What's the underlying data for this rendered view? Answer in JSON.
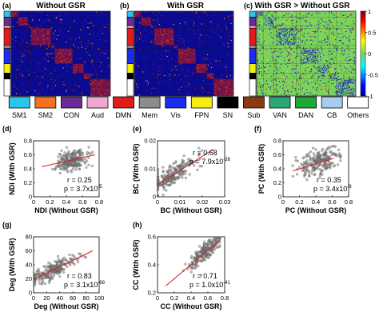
{
  "panels_top": [
    {
      "label": "(a)",
      "title": "Without GSR",
      "variant": "a"
    },
    {
      "label": "(b)",
      "title": "With GSR",
      "variant": "b"
    },
    {
      "label": "(c)",
      "title": "With GSR > Without GSR",
      "variant": "c"
    }
  ],
  "colorbar": {
    "ticks": [
      "1",
      "0.5",
      "0",
      "-0.5",
      "-1"
    ],
    "values": [
      1,
      0.5,
      0,
      -0.5,
      -1
    ]
  },
  "networks": [
    {
      "label": "SM1",
      "color": "#29c5ee"
    },
    {
      "label": "SM2",
      "color": "#f5701f"
    },
    {
      "label": "CON",
      "color": "#6a2c97"
    },
    {
      "label": "Aud",
      "color": "#f4a6d2"
    },
    {
      "label": "DMN",
      "color": "#e31a1c"
    },
    {
      "label": "Mem",
      "color": "#8c8c8c"
    },
    {
      "label": "Vis",
      "color": "#1a2cf0"
    },
    {
      "label": "FPN",
      "color": "#f5ee0f"
    },
    {
      "label": "SN",
      "color": "#000000"
    },
    {
      "label": "Sub",
      "color": "#8b3a0e"
    },
    {
      "label": "VAN",
      "color": "#2aa874"
    },
    {
      "label": "DAN",
      "color": "#1eaa32"
    },
    {
      "label": "CB",
      "color": "#a6cdf0"
    },
    {
      "label": "Others",
      "color": "#ffffff"
    }
  ],
  "side_strip_networks": [
    "SM1",
    "CON",
    "Aud",
    "DMN",
    "Mem",
    "Vis",
    "FPN",
    "SN",
    "Others"
  ],
  "colors": {
    "matrix_bg": "#0a0a92",
    "matrix_pos": "#c41a1a",
    "diff_bg": "#7cd35a",
    "scatter_point": "#7a7a7a",
    "fit_line": "#d42020"
  },
  "chart_data": [
    {
      "panel": "(d)",
      "type": "scatter",
      "xlabel": "NDI (Without GSR)",
      "ylabel": "NDi (With GSR)",
      "xlim": [
        0,
        0.8
      ],
      "ylim": [
        0,
        0.8
      ],
      "xticks": [
        0,
        0.2,
        0.4,
        0.6,
        0.8
      ],
      "xticklabels": [
        "0",
        "0.2",
        "0.4",
        "0.6",
        "0.8"
      ],
      "yticks": [
        0,
        0.2,
        0.4,
        0.6,
        0.8
      ],
      "yticklabels": [
        "0",
        "0.2",
        "0.4",
        "0.6",
        "0.8"
      ],
      "stats": [
        "r = 0.25",
        "p = 3.7x10-5"
      ],
      "stats_pos": "bottom-right",
      "fit": [
        [
          0.1,
          0.43
        ],
        [
          0.75,
          0.6
        ]
      ],
      "cloud": {
        "x_mean": 0.47,
        "x_sd": 0.09,
        "x_min": 0.12,
        "x_max": 0.72,
        "slope": 0.26,
        "intercept": 0.4,
        "noise": 0.07,
        "n": 230
      }
    },
    {
      "panel": "(e)",
      "type": "scatter",
      "xlabel": "BC (Without GSR)",
      "ylabel": "BC (With GSR)",
      "xlim": [
        0,
        0.03
      ],
      "ylim": [
        0,
        0.02
      ],
      "xticks": [
        0,
        0.01,
        0.02,
        0.03
      ],
      "xticklabels": [
        "0",
        "0.01",
        "0.02",
        "0.03"
      ],
      "yticks": [
        0,
        0.01,
        0.02
      ],
      "yticklabels": [
        "0",
        "0.01",
        "0.02"
      ],
      "stats": [
        "r = 0.68",
        "p = 7.9x10-38"
      ],
      "stats_pos": "top-right",
      "fit": [
        [
          0,
          0.0043
        ],
        [
          0.025,
          0.017
        ]
      ],
      "cloud": {
        "x_mean": 0.006,
        "x_sd": 0.005,
        "x_min": 0.0002,
        "x_max": 0.026,
        "slope": 0.5,
        "intercept": 0.0043,
        "noise": 0.0018,
        "n": 230
      }
    },
    {
      "panel": "(f)",
      "type": "scatter",
      "xlabel": "PC (Without GSR)",
      "ylabel": "PC (With GSR)",
      "xlim": [
        0,
        0.8
      ],
      "ylim": [
        0,
        0.8
      ],
      "xticks": [
        0,
        0.2,
        0.4,
        0.6,
        0.8
      ],
      "xticklabels": [
        "0",
        "0.2",
        "0.4",
        "0.6",
        "0.8"
      ],
      "yticks": [
        0,
        0.2,
        0.4,
        0.6,
        0.8
      ],
      "yticklabels": [
        "0",
        "0.2",
        "0.4",
        "0.6",
        "0.8"
      ],
      "stats": [
        "r = 0.35",
        "p = 3.4x10-9"
      ],
      "stats_pos": "bottom-right",
      "fit": [
        [
          0.12,
          0.37
        ],
        [
          0.62,
          0.55
        ]
      ],
      "cloud": {
        "x_mean": 0.45,
        "x_sd": 0.13,
        "x_min": 0.1,
        "x_max": 0.7,
        "slope": 0.36,
        "intercept": 0.33,
        "noise": 0.09,
        "n": 230
      }
    },
    {
      "panel": "(g)",
      "type": "scatter",
      "xlabel": "Deg (Without GSR)",
      "ylabel": "Deg (With GSR)",
      "xlim": [
        0,
        100
      ],
      "ylim": [
        0,
        80
      ],
      "xticks": [
        0,
        20,
        40,
        60,
        80,
        100
      ],
      "xticklabels": [
        "0",
        "20",
        "40",
        "60",
        "80",
        "100"
      ],
      "yticks": [
        0,
        20,
        40,
        60,
        80
      ],
      "yticklabels": [
        "0",
        "20",
        "40",
        "60",
        "80"
      ],
      "stats": [
        "r = 0.83",
        "p = 3.1x10-68"
      ],
      "stats_pos": "bottom-right",
      "fit": [
        [
          2,
          20
        ],
        [
          90,
          60
        ]
      ],
      "cloud": {
        "x_mean": 30,
        "x_sd": 17,
        "x_min": 2,
        "x_max": 90,
        "slope": 0.46,
        "intercept": 19,
        "noise": 6,
        "n": 230
      }
    },
    {
      "panel": "(h)",
      "type": "scatter",
      "xlabel": "CC (Without GSR)",
      "ylabel": "CC (With GSR)",
      "xlim": [
        0,
        0.8
      ],
      "ylim": [
        0.2,
        0.6
      ],
      "xticks": [
        0,
        0.2,
        0.4,
        0.6,
        0.8
      ],
      "xticklabels": [
        "0",
        "0.2",
        "0.4",
        "0.6",
        "0.8"
      ],
      "yticks": [
        0.2,
        0.4,
        0.6
      ],
      "yticklabels": [
        "0.2",
        "0.4",
        "0.6"
      ],
      "stats": [
        "r = 0.71",
        "p = 1.0x10-41"
      ],
      "stats_pos": "bottom-right",
      "fit": [
        [
          0.1,
          0.25
        ],
        [
          0.75,
          0.58
        ]
      ],
      "cloud": {
        "x_mean": 0.57,
        "x_sd": 0.09,
        "x_min": 0.2,
        "x_max": 0.74,
        "slope": 0.52,
        "intercept": 0.2,
        "noise": 0.03,
        "n": 230
      }
    }
  ]
}
